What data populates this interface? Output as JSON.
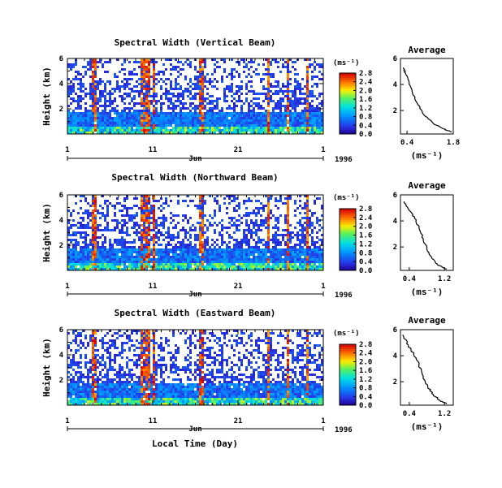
{
  "chart_data": [
    {
      "type": "heatmap",
      "title": "Spectral Width (Vertical Beam)",
      "ylabel": "Height (km)",
      "yticks": [
        "2",
        "4",
        "6"
      ],
      "ylim": [
        0,
        6
      ],
      "xticks": [
        "1",
        "11",
        "21",
        "1"
      ],
      "month_label": "Jun",
      "year_label": "1996",
      "colorbar_unit": "(ms⁻¹)",
      "colorbar_ticks": [
        "0.0",
        "0.4",
        "0.8",
        "1.2",
        "1.6",
        "2.0",
        "2.4",
        "2.8"
      ],
      "colorbar_range": [
        0,
        2.8
      ],
      "profile": {
        "title": "Average",
        "xlabel": "(ms⁻¹)",
        "xticks": [
          "0.4",
          "1.8"
        ],
        "yticks": [
          "2",
          "4",
          "6"
        ],
        "xlim": [
          0.2,
          1.8
        ],
        "ylim": [
          0.2,
          6
        ],
        "points": [
          [
            0.28,
            5.3
          ],
          [
            0.35,
            4.9
          ],
          [
            0.45,
            4.3
          ],
          [
            0.55,
            3.5
          ],
          [
            0.7,
            2.6
          ],
          [
            0.9,
            1.7
          ],
          [
            1.2,
            1.0
          ],
          [
            1.5,
            0.6
          ],
          [
            1.75,
            0.35
          ]
        ]
      }
    },
    {
      "type": "heatmap",
      "title": "Spectral Width (Northward Beam)",
      "ylabel": "Height (km)",
      "yticks": [
        "2",
        "4",
        "6"
      ],
      "ylim": [
        0,
        6
      ],
      "xticks": [
        "1",
        "11",
        "21",
        "1"
      ],
      "month_label": "Jun",
      "year_label": "1996",
      "colorbar_unit": "(ms⁻¹)",
      "colorbar_ticks": [
        "0.0",
        "0.4",
        "0.8",
        "1.2",
        "1.6",
        "2.0",
        "2.4",
        "2.8"
      ],
      "colorbar_range": [
        0,
        2.8
      ],
      "profile": {
        "title": "Average",
        "xlabel": "(ms⁻¹)",
        "xticks": [
          "0.4",
          "1.2"
        ],
        "yticks": [
          "2",
          "4",
          "6"
        ],
        "xlim": [
          0.2,
          1.4
        ],
        "ylim": [
          0.2,
          6
        ],
        "points": [
          [
            0.28,
            5.5
          ],
          [
            0.4,
            4.8
          ],
          [
            0.52,
            4.2
          ],
          [
            0.62,
            3.5
          ],
          [
            0.72,
            2.6
          ],
          [
            0.8,
            1.8
          ],
          [
            0.92,
            1.1
          ],
          [
            1.05,
            0.6
          ],
          [
            1.25,
            0.3
          ]
        ]
      }
    },
    {
      "type": "heatmap",
      "title": "Spectral Width (Eastward Beam)",
      "ylabel": "Height (km)",
      "yticks": [
        "2",
        "4",
        "6"
      ],
      "ylim": [
        0,
        6
      ],
      "xticks": [
        "1",
        "11",
        "21",
        "1"
      ],
      "month_label": "Jun",
      "year_label": "1996",
      "xlabel": "Local Time (Day)",
      "colorbar_unit": "(ms⁻¹)",
      "colorbar_ticks": [
        "0.0",
        "0.4",
        "0.8",
        "1.2",
        "1.6",
        "2.0",
        "2.4",
        "2.8"
      ],
      "colorbar_range": [
        0,
        2.8
      ],
      "profile": {
        "title": "Average",
        "xlabel": "(ms⁻¹)",
        "xticks": [
          "0.4",
          "1.2"
        ],
        "yticks": [
          "2",
          "4",
          "6"
        ],
        "xlim": [
          0.2,
          1.4
        ],
        "ylim": [
          0.2,
          6
        ],
        "points": [
          [
            0.25,
            5.6
          ],
          [
            0.38,
            4.8
          ],
          [
            0.5,
            4.1
          ],
          [
            0.62,
            3.3
          ],
          [
            0.72,
            2.4
          ],
          [
            0.82,
            1.6
          ],
          [
            0.95,
            1.0
          ],
          [
            1.1,
            0.55
          ],
          [
            1.25,
            0.3
          ]
        ]
      }
    }
  ]
}
